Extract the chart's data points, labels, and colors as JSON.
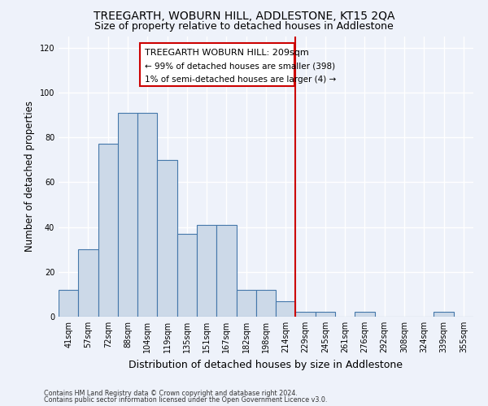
{
  "title": "TREEGARTH, WOBURN HILL, ADDLESTONE, KT15 2QA",
  "subtitle": "Size of property relative to detached houses in Addlestone",
  "xlabel": "Distribution of detached houses by size in Addlestone",
  "ylabel": "Number of detached properties",
  "footer_line1": "Contains HM Land Registry data © Crown copyright and database right 2024.",
  "footer_line2": "Contains public sector information licensed under the Open Government Licence v3.0.",
  "categories": [
    "41sqm",
    "57sqm",
    "72sqm",
    "88sqm",
    "104sqm",
    "119sqm",
    "135sqm",
    "151sqm",
    "167sqm",
    "182sqm",
    "198sqm",
    "214sqm",
    "229sqm",
    "245sqm",
    "261sqm",
    "276sqm",
    "292sqm",
    "308sqm",
    "324sqm",
    "339sqm",
    "355sqm"
  ],
  "values": [
    12,
    30,
    77,
    91,
    91,
    70,
    37,
    41,
    41,
    12,
    12,
    7,
    2,
    2,
    0,
    2,
    0,
    0,
    0,
    2,
    0
  ],
  "bar_color": "#ccd9e8",
  "bar_edge_color": "#4477aa",
  "ylim": [
    0,
    125
  ],
  "yticks": [
    0,
    20,
    40,
    60,
    80,
    100,
    120
  ],
  "vline_index": 11.5,
  "annotation_title": "TREEGARTH WOBURN HILL: 209sqm",
  "annotation_line2": "← 99% of detached houses are smaller (398)",
  "annotation_line3": "1% of semi-detached houses are larger (4) →",
  "vline_color": "#cc0000",
  "annotation_box_edgecolor": "#cc0000",
  "background_color": "#eef2fa",
  "grid_color": "#ffffff",
  "title_fontsize": 10,
  "subtitle_fontsize": 9,
  "ylabel_fontsize": 8.5,
  "xlabel_fontsize": 9,
  "tick_fontsize": 7,
  "ann_title_fontsize": 8,
  "ann_body_fontsize": 7.5
}
